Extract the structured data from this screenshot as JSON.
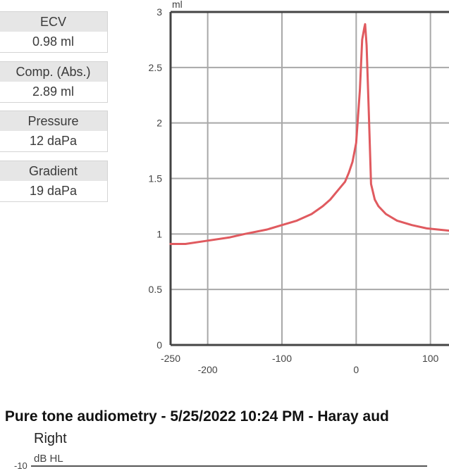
{
  "metrics": [
    {
      "label": "ECV",
      "value": "0.98 ml"
    },
    {
      "label": "Comp. (Abs.)",
      "value": "2.89 ml"
    },
    {
      "label": "Pressure",
      "value": "12 daPa"
    },
    {
      "label": "Gradient",
      "value": "19 daPa"
    }
  ],
  "chart_data": {
    "type": "line",
    "title": "",
    "ylabel": "ml",
    "xlabel": "",
    "xlim": [
      -250,
      125
    ],
    "ylim": [
      0,
      3
    ],
    "x_ticks_upper": [
      "-250",
      "-100",
      "100"
    ],
    "x_ticks_lower": [
      "-200",
      "0"
    ],
    "y_ticks": [
      "0",
      "0.5",
      "1",
      "1.5",
      "2",
      "2.5",
      "3"
    ],
    "grid": true,
    "line_color": "#e05a5f",
    "series": [
      {
        "x": [
          -250,
          -230,
          -200,
          -170,
          -150,
          -120,
          -100,
          -80,
          -60,
          -45,
          -35,
          -25,
          -15,
          -10,
          -5,
          0,
          5,
          8,
          11,
          12,
          14,
          17,
          20,
          25,
          30,
          40,
          55,
          75,
          95,
          110,
          125
        ],
        "y": [
          0.91,
          0.91,
          0.94,
          0.97,
          1.0,
          1.04,
          1.08,
          1.12,
          1.18,
          1.25,
          1.31,
          1.39,
          1.47,
          1.55,
          1.65,
          1.82,
          2.3,
          2.75,
          2.86,
          2.89,
          2.7,
          2.1,
          1.45,
          1.31,
          1.25,
          1.18,
          1.12,
          1.08,
          1.05,
          1.04,
          1.03
        ]
      }
    ]
  },
  "audiometry": {
    "title": ": Pure tone audiometry - 5/25/2022 10:24 PM - Haray aud",
    "side": "Right",
    "unit": "dB HL",
    "first_tick": "-10"
  }
}
